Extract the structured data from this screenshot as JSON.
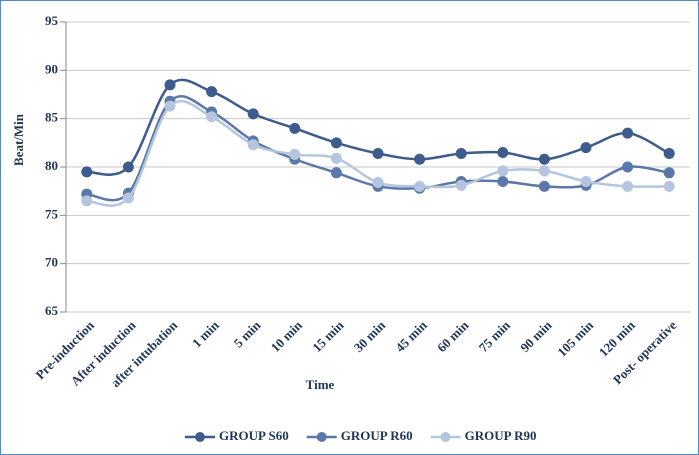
{
  "chart_data": {
    "type": "line",
    "x_label": "Time",
    "y_label": "Beat/Min",
    "categories": [
      "Pre-induction",
      "After induction",
      "after intubation",
      "1 min",
      "5 min",
      "10 min",
      "15 min",
      "30 min",
      "45 min",
      "60 min",
      "75 min",
      "90 min",
      "105 min",
      "120 min",
      "Post- operative"
    ],
    "series": [
      {
        "name": "GROUP S60",
        "color": "#3d5b8c",
        "values": [
          79.5,
          80,
          88.5,
          87.8,
          85.5,
          84,
          82.5,
          81.4,
          80.8,
          81.4,
          81.5,
          80.8,
          82,
          83.5,
          81.4
        ]
      },
      {
        "name": "GROUP R60",
        "color": "#5a78aa",
        "values": [
          77.2,
          77.3,
          86.8,
          85.7,
          82.7,
          80.8,
          79.4,
          78,
          77.8,
          78.5,
          78.5,
          78,
          78.1,
          80,
          79.4
        ]
      },
      {
        "name": "GROUP R90",
        "color": "#b6c5de",
        "values": [
          76.5,
          76.8,
          86.3,
          85.2,
          82.3,
          81.3,
          80.9,
          78.4,
          78,
          78.1,
          79.6,
          79.6,
          78.5,
          78,
          78
        ]
      }
    ],
    "ylim": [
      65,
      95
    ],
    "yticks": [
      65,
      70,
      75,
      80,
      85,
      90,
      95
    ],
    "grid": true,
    "legend": "bottom"
  }
}
